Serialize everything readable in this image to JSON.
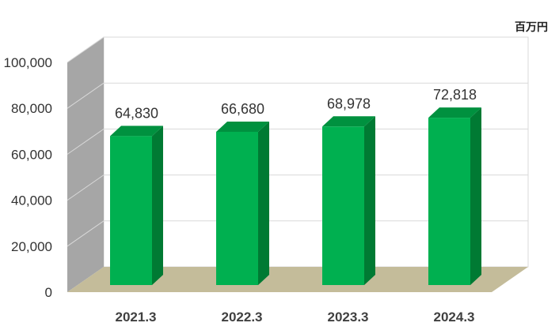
{
  "chart_data": {
    "type": "bar",
    "style": "3d-column",
    "categories": [
      "2021.3",
      "2022.3",
      "2023.3",
      "2024.3"
    ],
    "values": [
      64830,
      66680,
      68978,
      72818
    ],
    "value_labels": [
      "64,830",
      "66,680",
      "68,978",
      "72,818"
    ],
    "unit": "百万円",
    "ylim": [
      0,
      100000
    ],
    "yticks": [
      0,
      20000,
      40000,
      60000,
      80000,
      100000
    ],
    "ytick_labels": [
      "0",
      "20,000",
      "40,000",
      "60,000",
      "80,000",
      "100,000"
    ],
    "grid": true,
    "colors": {
      "bar_front": "#00b050",
      "bar_side": "#007a33",
      "bar_top": "#00913f",
      "back_wall": "#ffffff",
      "side_wall": "#a6a6a6",
      "floor": "#c4bc9a",
      "grid": "#d9d9d9"
    }
  }
}
